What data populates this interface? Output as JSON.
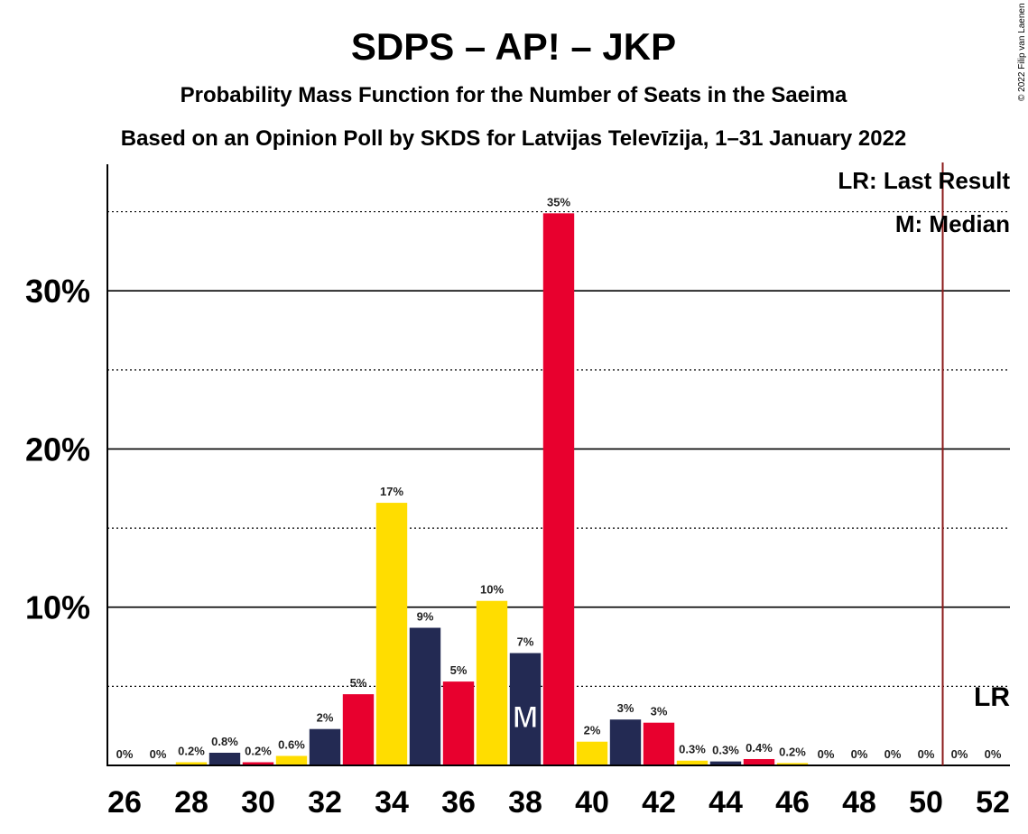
{
  "chart_data": {
    "type": "bar",
    "title": "SDPS – AP! – JKP",
    "subtitle_1": "Probability Mass Function for the Number of Seats in the Saeima",
    "subtitle_2": "Based on an Opinion Poll by SKDS for Latvijas Televīzija, 1–31 January 2022",
    "copyright": "© 2022 Filip van Laenen",
    "x": [
      26,
      27,
      28,
      29,
      30,
      31,
      32,
      33,
      34,
      35,
      36,
      37,
      38,
      39,
      40,
      41,
      42,
      43,
      44,
      45,
      46,
      47,
      48,
      49,
      50,
      51,
      52
    ],
    "values": [
      0,
      0,
      0.2,
      0.8,
      0.2,
      0.6,
      2.3,
      4.5,
      16.6,
      8.7,
      5.3,
      10.4,
      7.1,
      34.9,
      1.5,
      2.9,
      2.7,
      0.3,
      0.25,
      0.4,
      0.15,
      0,
      0,
      0,
      0,
      0,
      0
    ],
    "labels": [
      "0%",
      "0%",
      "0.2%",
      "0.8%",
      "0.2%",
      "0.6%",
      "2%",
      "5%",
      "17%",
      "9%",
      "5%",
      "10%",
      "7%",
      "35%",
      "2%",
      "3%",
      "3%",
      "0.3%",
      "0.3%",
      "0.4%",
      "0.2%",
      "0%",
      "0%",
      "0%",
      "0%",
      "0%",
      "0%"
    ],
    "x_tick_labels": [
      "26",
      "28",
      "30",
      "32",
      "34",
      "36",
      "38",
      "40",
      "42",
      "44",
      "46",
      "48",
      "50",
      "52"
    ],
    "y_tick_labels": [
      "10%",
      "20%",
      "30%"
    ],
    "ylim": [
      0,
      38
    ],
    "y_major_lines": [
      10,
      20,
      30
    ],
    "y_minor_lines": [
      5,
      15,
      25,
      35
    ],
    "bar_colors": [
      "#E8002E",
      "#FFDD00",
      "#232A53"
    ],
    "bar_color_cycle_start": 2,
    "last_result_seat": 51,
    "last_result_color": "#8B1A1A",
    "median_seat": 38,
    "median_marker": "M",
    "last_result_marker": "LR",
    "legend": {
      "last_result": "LR: Last Result",
      "median": "M: Median"
    }
  }
}
